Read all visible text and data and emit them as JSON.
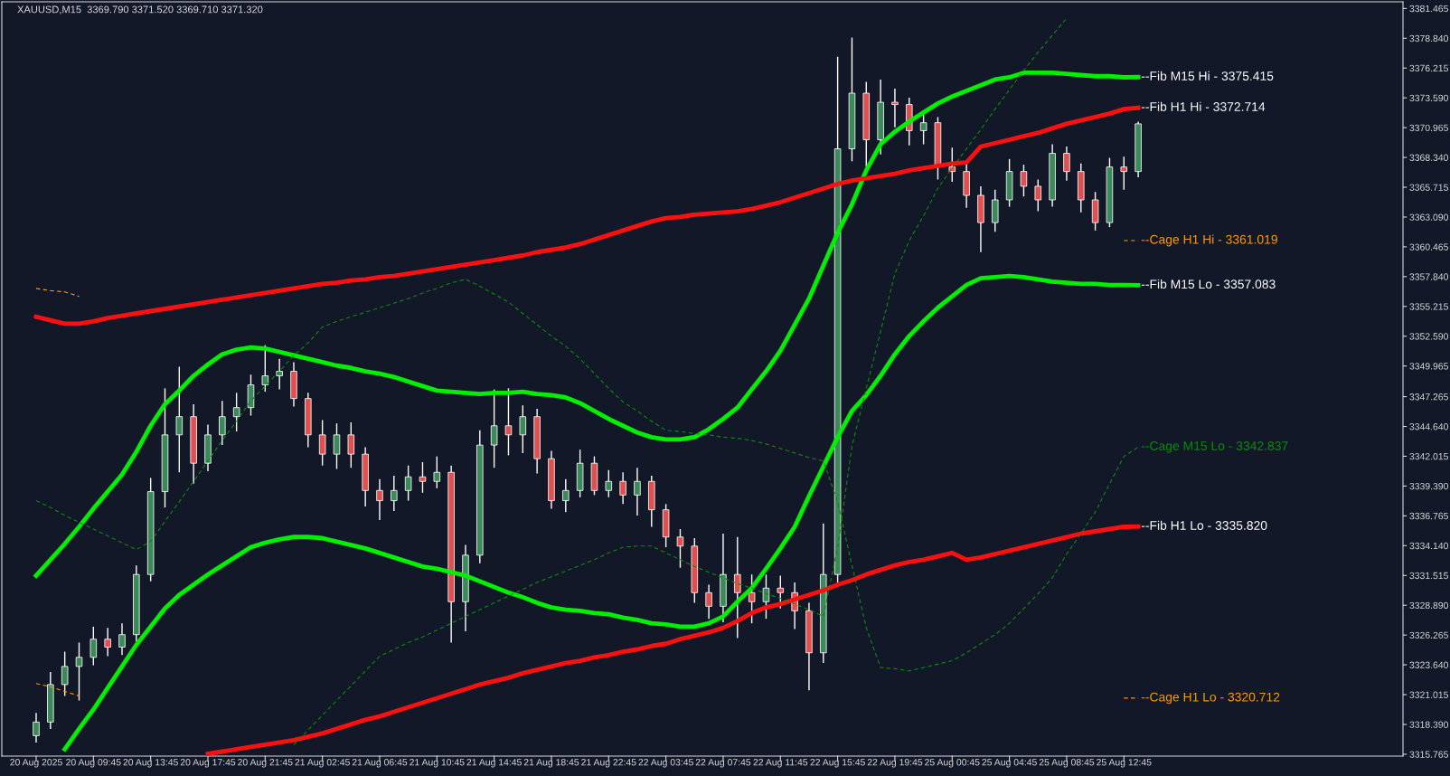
{
  "chart_data": {
    "type": "candlestick",
    "title": "XAUUSD,M15  3369.790 3371.520 3369.710 3371.320",
    "categories": [
      "20 Aug 2025",
      null,
      null,
      null,
      "20 Aug 09:45",
      null,
      null,
      null,
      "20 Aug 13:45",
      null,
      null,
      null,
      "20 Aug 17:45",
      null,
      null,
      null,
      "20 Aug 21:45",
      null,
      null,
      null,
      "21 Aug 02:45",
      null,
      null,
      null,
      "21 Aug 06:45",
      null,
      null,
      null,
      "21 Aug 10:45",
      null,
      null,
      null,
      "21 Aug 14:45",
      null,
      null,
      null,
      "21 Aug 18:45",
      null,
      null,
      null,
      "21 Aug 22:45",
      null,
      null,
      null,
      "22 Aug 03:45",
      null,
      null,
      null,
      "22 Aug 07:45",
      null,
      null,
      null,
      "22 Aug 11:45",
      null,
      null,
      null,
      "22 Aug 15:45",
      null,
      null,
      null,
      "22 Aug 19:45",
      null,
      null,
      null,
      "25 Aug 00:45",
      null,
      null,
      null,
      "25 Aug 04:45",
      null,
      null,
      null,
      "25 Aug 08:45",
      null,
      null,
      null,
      "25 Aug 12:45",
      null
    ],
    "ohlc": [
      [
        3317.4,
        3319.4,
        3316.8,
        3318.6
      ],
      [
        3318.6,
        3323.0,
        3318.0,
        3321.9
      ],
      [
        3321.9,
        3324.8,
        3320.9,
        3323.5
      ],
      [
        3323.5,
        3325.6,
        3320.5,
        3324.3
      ],
      [
        3324.3,
        3327.0,
        3323.6,
        3325.9
      ],
      [
        3325.9,
        3326.9,
        3324.4,
        3325.2
      ],
      [
        3325.2,
        3327.3,
        3324.5,
        3326.3
      ],
      [
        3326.3,
        3332.4,
        3325.7,
        3331.6
      ],
      [
        3331.6,
        3340.1,
        3331.0,
        3338.9
      ],
      [
        3338.9,
        3348.0,
        3337.5,
        3343.9
      ],
      [
        3343.9,
        3349.9,
        3340.6,
        3345.5
      ],
      [
        3345.5,
        3346.6,
        3339.6,
        3341.4
      ],
      [
        3341.4,
        3344.8,
        3340.7,
        3343.9
      ],
      [
        3343.9,
        3346.9,
        3343.0,
        3345.5
      ],
      [
        3345.5,
        3347.6,
        3344.2,
        3346.3
      ],
      [
        3346.3,
        3349.2,
        3345.6,
        3348.3
      ],
      [
        3348.3,
        3351.8,
        3347.7,
        3349.1
      ],
      [
        3349.1,
        3350.6,
        3347.9,
        3349.5
      ],
      [
        3349.5,
        3350.3,
        3346.4,
        3347.1
      ],
      [
        3347.1,
        3347.6,
        3342.8,
        3343.9
      ],
      [
        3343.9,
        3345.2,
        3341.2,
        3342.2
      ],
      [
        3342.2,
        3344.9,
        3340.9,
        3343.9
      ],
      [
        3343.9,
        3345.0,
        3341.0,
        3342.2
      ],
      [
        3342.2,
        3342.8,
        3337.6,
        3339.0
      ],
      [
        3339.0,
        3340.0,
        3336.4,
        3338.1
      ],
      [
        3338.1,
        3340.3,
        3337.2,
        3339.0
      ],
      [
        3339.0,
        3341.2,
        3338.1,
        3340.2
      ],
      [
        3340.2,
        3341.5,
        3338.8,
        3339.8
      ],
      [
        3339.8,
        3342.0,
        3339.2,
        3340.6
      ],
      [
        3340.6,
        3341.2,
        3325.6,
        3329.2
      ],
      [
        3329.2,
        3334.2,
        3326.6,
        3333.3
      ],
      [
        3333.3,
        3344.3,
        3332.6,
        3343.0
      ],
      [
        3343.0,
        3347.9,
        3341.0,
        3344.7
      ],
      [
        3344.7,
        3348.0,
        3342.1,
        3343.9
      ],
      [
        3343.9,
        3346.5,
        3342.3,
        3345.5
      ],
      [
        3345.5,
        3346.2,
        3340.5,
        3341.8
      ],
      [
        3341.8,
        3342.5,
        3337.4,
        3338.1
      ],
      [
        3338.1,
        3340.0,
        3337.1,
        3339.0
      ],
      [
        3339.0,
        3342.6,
        3338.4,
        3341.4
      ],
      [
        3341.4,
        3342.0,
        3338.6,
        3339.0
      ],
      [
        3339.0,
        3340.8,
        3338.4,
        3339.8
      ],
      [
        3339.8,
        3340.6,
        3337.8,
        3338.6
      ],
      [
        3338.6,
        3341.0,
        3336.8,
        3339.8
      ],
      [
        3339.8,
        3340.3,
        3335.8,
        3337.3
      ],
      [
        3337.3,
        3337.8,
        3334.0,
        3334.9
      ],
      [
        3334.9,
        3335.6,
        3332.2,
        3334.1
      ],
      [
        3334.1,
        3334.8,
        3329.1,
        3330.0
      ],
      [
        3330.0,
        3330.7,
        3327.7,
        3328.8
      ],
      [
        3328.8,
        3335.2,
        3327.4,
        3331.6
      ],
      [
        3331.6,
        3334.9,
        3326.0,
        3330.0
      ],
      [
        3330.0,
        3331.6,
        3327.3,
        3329.2
      ],
      [
        3329.2,
        3331.6,
        3327.7,
        3330.4
      ],
      [
        3330.4,
        3331.5,
        3328.6,
        3330.0
      ],
      [
        3330.0,
        3330.9,
        3326.8,
        3328.4
      ],
      [
        3328.4,
        3329.1,
        3321.4,
        3324.7
      ],
      [
        3324.7,
        3336.1,
        3323.8,
        3331.6
      ],
      [
        3331.6,
        3377.2,
        3330.8,
        3369.1
      ],
      [
        3369.1,
        3378.9,
        3368.0,
        3374.0
      ],
      [
        3374.0,
        3375.0,
        3367.5,
        3369.9
      ],
      [
        3369.9,
        3375.2,
        3368.6,
        3373.2
      ],
      [
        3373.2,
        3374.4,
        3371.0,
        3373.0
      ],
      [
        3373.0,
        3373.6,
        3369.4,
        3370.7
      ],
      [
        3370.7,
        3372.2,
        3369.5,
        3371.4
      ],
      [
        3371.4,
        3371.9,
        3366.4,
        3367.5
      ],
      [
        3367.5,
        3369.2,
        3366.2,
        3367.1
      ],
      [
        3367.1,
        3367.8,
        3363.9,
        3365.0
      ],
      [
        3365.0,
        3365.8,
        3360.0,
        3362.6
      ],
      [
        3362.6,
        3365.5,
        3361.8,
        3364.6
      ],
      [
        3364.6,
        3368.2,
        3364.0,
        3367.1
      ],
      [
        3367.1,
        3367.7,
        3364.9,
        3365.8
      ],
      [
        3365.8,
        3366.4,
        3363.6,
        3364.6
      ],
      [
        3364.6,
        3369.5,
        3364.0,
        3368.7
      ],
      [
        3368.7,
        3369.3,
        3366.3,
        3367.1
      ],
      [
        3367.1,
        3367.8,
        3363.5,
        3364.6
      ],
      [
        3364.6,
        3365.3,
        3361.9,
        3362.6
      ],
      [
        3362.6,
        3368.3,
        3362.2,
        3367.5
      ],
      [
        3367.5,
        3368.4,
        3365.5,
        3367.1
      ],
      [
        3367.1,
        3371.5,
        3366.6,
        3371.3
      ]
    ],
    "series": [
      {
        "type": "line",
        "name": "--Fib M15 Hi - 3375.415",
        "color": "#00ee00",
        "line_style": "solid",
        "values": [
          3331.5,
          3332.9,
          3334.3,
          3335.8,
          3337.4,
          3338.9,
          3340.4,
          3342.4,
          3344.7,
          3346.6,
          3347.8,
          3349.1,
          3350.1,
          3351.0,
          3351.4,
          3351.6,
          3351.5,
          3351.2,
          3350.9,
          3350.6,
          3350.3,
          3350.0,
          3349.8,
          3349.5,
          3349.3,
          3349.0,
          3348.6,
          3348.2,
          3347.8,
          3347.7,
          3347.6,
          3347.5,
          3347.6,
          3347.6,
          3347.7,
          3347.5,
          3347.4,
          3347.2,
          3346.7,
          3346.0,
          3345.3,
          3344.7,
          3344.1,
          3343.7,
          3343.5,
          3343.5,
          3343.7,
          3344.4,
          3345.3,
          3346.3,
          3347.9,
          3349.5,
          3351.3,
          3353.6,
          3355.9,
          3358.8,
          3361.7,
          3364.2,
          3367.2,
          3369.5,
          3370.6,
          3371.5,
          3372.3,
          3373.1,
          3373.7,
          3374.2,
          3374.7,
          3375.2,
          3375.4,
          3375.8,
          3375.8,
          3375.8,
          3375.7,
          3375.6,
          3375.5,
          3375.5,
          3375.4,
          3375.415
        ]
      },
      {
        "type": "line",
        "name": "--Fib M15 Lo - 3357.083",
        "color": "#00ee00",
        "line_style": "solid",
        "values": [
          null,
          null,
          3316.2,
          3318.0,
          3319.7,
          3321.6,
          3323.5,
          3325.4,
          3327.0,
          3328.6,
          3329.8,
          3330.7,
          3331.6,
          3332.4,
          3333.2,
          3334.0,
          3334.4,
          3334.7,
          3334.9,
          3334.9,
          3334.8,
          3334.5,
          3334.2,
          3333.9,
          3333.5,
          3333.1,
          3332.7,
          3332.3,
          3332.1,
          3331.8,
          3331.5,
          3331.0,
          3330.5,
          3330.0,
          3329.6,
          3329.1,
          3328.7,
          3328.5,
          3328.4,
          3328.2,
          3328.1,
          3327.8,
          3327.6,
          3327.3,
          3327.2,
          3327.0,
          3327.0,
          3327.3,
          3327.9,
          3329.2,
          3330.4,
          3332.1,
          3333.9,
          3335.8,
          3338.5,
          3341.1,
          3343.7,
          3346.0,
          3347.4,
          3349.1,
          3351.0,
          3352.6,
          3353.9,
          3355.1,
          3356.1,
          3357.1,
          3357.7,
          3357.8,
          3357.9,
          3357.8,
          3357.6,
          3357.4,
          3357.3,
          3357.2,
          3357.2,
          3357.1,
          3357.1,
          3357.083
        ]
      },
      {
        "type": "line",
        "name": "--Fib H1 Hi - 3372.714",
        "color": "#ff1010",
        "line_style": "solid",
        "values": [
          3354.3,
          3354.0,
          3353.7,
          3353.7,
          3353.9,
          3354.2,
          3354.4,
          3354.6,
          3354.8,
          3355.0,
          3355.2,
          3355.4,
          3355.6,
          3355.8,
          3356.0,
          3356.2,
          3356.4,
          3356.6,
          3356.8,
          3357.0,
          3357.2,
          3357.3,
          3357.5,
          3357.6,
          3357.8,
          3357.9,
          3358.1,
          3358.3,
          3358.5,
          3358.7,
          3358.9,
          3359.1,
          3359.3,
          3359.5,
          3359.7,
          3360.0,
          3360.2,
          3360.4,
          3360.7,
          3361.1,
          3361.5,
          3361.9,
          3362.3,
          3362.7,
          3363.0,
          3363.1,
          3363.3,
          3363.4,
          3363.5,
          3363.6,
          3363.8,
          3364.1,
          3364.4,
          3364.8,
          3365.2,
          3365.6,
          3366.0,
          3366.3,
          3366.5,
          3366.7,
          3366.9,
          3367.2,
          3367.4,
          3367.6,
          3367.8,
          3367.9,
          3369.3,
          3369.6,
          3369.9,
          3370.2,
          3370.5,
          3370.9,
          3371.3,
          3371.6,
          3371.9,
          3372.2,
          3372.6,
          3372.714
        ]
      },
      {
        "type": "line",
        "name": "--Fib H1 Lo - 3335.820",
        "color": "#ff1010",
        "line_style": "solid",
        "values": [
          null,
          null,
          null,
          null,
          null,
          null,
          null,
          null,
          null,
          null,
          null,
          null,
          3315.8,
          3316.0,
          3316.2,
          3316.4,
          3316.6,
          3316.8,
          3317.0,
          3317.3,
          3317.6,
          3318.0,
          3318.4,
          3318.8,
          3319.1,
          3319.5,
          3319.9,
          3320.3,
          3320.7,
          3321.1,
          3321.5,
          3321.9,
          3322.2,
          3322.5,
          3322.9,
          3323.2,
          3323.5,
          3323.8,
          3324.0,
          3324.3,
          3324.5,
          3324.8,
          3325.0,
          3325.3,
          3325.5,
          3325.9,
          3326.2,
          3326.5,
          3326.9,
          3327.5,
          3328.2,
          3328.7,
          3329.0,
          3329.4,
          3329.8,
          3330.2,
          3330.7,
          3331.1,
          3331.6,
          3332.0,
          3332.4,
          3332.7,
          3332.9,
          3333.2,
          3333.5,
          3332.9,
          3333.1,
          3333.4,
          3333.7,
          3334.0,
          3334.3,
          3334.6,
          3334.9,
          3335.2,
          3335.4,
          3335.6,
          3335.8,
          3335.82
        ]
      },
      {
        "type": "line",
        "name": "--Cage M15 Lo - 3342.837",
        "color": "#0c8a0c",
        "line_style": "dashed",
        "values": [
          3338.1,
          3337.5,
          3336.8,
          3336.2,
          3335.6,
          3335.0,
          3334.4,
          3333.8,
          3334.5,
          3336.3,
          3338.0,
          3339.8,
          3341.6,
          3343.4,
          3345.1,
          3346.9,
          3348.2,
          3349.5,
          3350.9,
          3352.0,
          3353.4,
          3353.9,
          3354.3,
          3354.7,
          3355.1,
          3355.5,
          3355.9,
          3356.4,
          3356.8,
          3357.3,
          3357.6,
          3357.0,
          3356.3,
          3355.6,
          3354.6,
          3353.6,
          3352.6,
          3351.7,
          3350.6,
          3349.3,
          3348.0,
          3346.8,
          3346.0,
          3345.1,
          3344.3,
          3344.2,
          3344.0,
          3343.9,
          3343.7,
          3343.6,
          3343.4,
          3343.1,
          3342.7,
          3342.3,
          3341.9,
          3341.6,
          3338.0,
          3332.4,
          3326.9,
          3323.4,
          3323.3,
          3323.1,
          3323.4,
          3323.7,
          3324.0,
          3324.7,
          3325.5,
          3326.3,
          3327.3,
          3328.6,
          3329.9,
          3331.3,
          3333.4,
          3335.2,
          3337.1,
          3339.6,
          3342.0,
          3342.837
        ]
      },
      {
        "type": "line",
        "color": "#0c8a0c",
        "line_style": "dashed",
        "values": [
          null,
          null,
          null,
          null,
          null,
          null,
          null,
          null,
          null,
          null,
          null,
          null,
          null,
          null,
          null,
          null,
          null,
          null,
          3316.6,
          3317.9,
          3319.2,
          3320.5,
          3321.8,
          3323.1,
          3324.4,
          3325.0,
          3325.6,
          3326.1,
          3326.7,
          3327.3,
          3327.9,
          3328.5,
          3329.1,
          3329.7,
          3330.3,
          3330.9,
          3331.4,
          3331.9,
          3332.4,
          3332.9,
          3333.5,
          3334.0,
          3334.1,
          3334.1,
          3333.5,
          3332.9,
          3332.3,
          3331.8,
          3331.3,
          3330.8,
          3330.4,
          3329.9,
          3329.5,
          3329.0,
          3328.5,
          3327.9,
          3334.0,
          3342.9,
          3348.0,
          3353.0,
          3358.1,
          3361.0,
          3363.2,
          3365.6,
          3367.4,
          3369.1,
          3370.8,
          3372.6,
          3374.3,
          3376.0,
          3377.6,
          3379.1,
          3380.6,
          null,
          null,
          null,
          null,
          null
        ]
      },
      {
        "type": "line",
        "name": "--Cage H1 Hi - 3361.019",
        "color": "#ff9900",
        "line_style": "dashed",
        "values": [
          3356.8,
          3356.6,
          3356.5,
          3356.1,
          null,
          null,
          null,
          null,
          null,
          null,
          null,
          null,
          null,
          null,
          null,
          null,
          null,
          null,
          null,
          null,
          null,
          null,
          null,
          null,
          null,
          null,
          null,
          null,
          null,
          null,
          null,
          null,
          null,
          null,
          null,
          null,
          null,
          null,
          null,
          null,
          null,
          null,
          null,
          null,
          null,
          null,
          null,
          null,
          null,
          null,
          null,
          null,
          null,
          null,
          null,
          null,
          null,
          null,
          null,
          null,
          null,
          null,
          null,
          null,
          null,
          null,
          null,
          null,
          null,
          null,
          null,
          null,
          null,
          null,
          null,
          null,
          3361.019,
          3361.019
        ]
      },
      {
        "type": "line",
        "name": "--Cage H1 Lo - 3320.712",
        "color": "#ff9900",
        "line_style": "dashed",
        "values": [
          3322.0,
          3321.7,
          3321.3,
          3320.9,
          null,
          null,
          null,
          null,
          null,
          null,
          null,
          null,
          null,
          null,
          null,
          null,
          null,
          null,
          null,
          null,
          null,
          null,
          null,
          null,
          null,
          null,
          null,
          null,
          null,
          null,
          null,
          null,
          null,
          null,
          null,
          null,
          null,
          null,
          null,
          null,
          null,
          null,
          null,
          null,
          null,
          null,
          null,
          null,
          null,
          null,
          null,
          null,
          null,
          null,
          null,
          null,
          null,
          null,
          null,
          null,
          null,
          null,
          null,
          null,
          null,
          null,
          null,
          null,
          null,
          null,
          null,
          null,
          null,
          null,
          null,
          null,
          3320.712,
          3320.712
        ]
      }
    ],
    "ylim": [
      3315.6,
      3382.05
    ],
    "yticks": [
      {
        "value": 3315.765,
        "label": "3315.765"
      },
      {
        "value": 3318.39,
        "label": "3318.390"
      },
      {
        "value": 3321.015,
        "label": "3321.015"
      },
      {
        "value": 3323.64,
        "label": "3323.640"
      },
      {
        "value": 3326.265,
        "label": "3326.265"
      },
      {
        "value": 3328.89,
        "label": "3328.890"
      },
      {
        "value": 3331.515,
        "label": "3331.515"
      },
      {
        "value": 3334.14,
        "label": "3334.140"
      },
      {
        "value": 3336.765,
        "label": "3336.765"
      },
      {
        "value": 3339.39,
        "label": "3339.390"
      },
      {
        "value": 3342.015,
        "label": "3342.015"
      },
      {
        "value": 3344.64,
        "label": "3344.640"
      },
      {
        "value": 3347.265,
        "label": "3347.265"
      },
      {
        "value": 3349.965,
        "label": "3349.965"
      },
      {
        "value": 3352.59,
        "label": "3352.590"
      },
      {
        "value": 3355.215,
        "label": "3355.215"
      },
      {
        "value": 3357.84,
        "label": "3357.840"
      },
      {
        "value": 3360.465,
        "label": "3360.465"
      },
      {
        "value": 3363.09,
        "label": "3363.090"
      },
      {
        "value": 3365.715,
        "label": "3365.715"
      },
      {
        "value": 3368.34,
        "label": "3368.340"
      },
      {
        "value": 3370.965,
        "label": "3370.965"
      },
      {
        "value": 3373.59,
        "label": "3373.590"
      },
      {
        "value": 3376.215,
        "label": "3376.215"
      },
      {
        "value": 3378.84,
        "label": "3378.840"
      },
      {
        "value": 3381.465,
        "label": "3381.465"
      }
    ],
    "grid": false,
    "legend": false
  }
}
